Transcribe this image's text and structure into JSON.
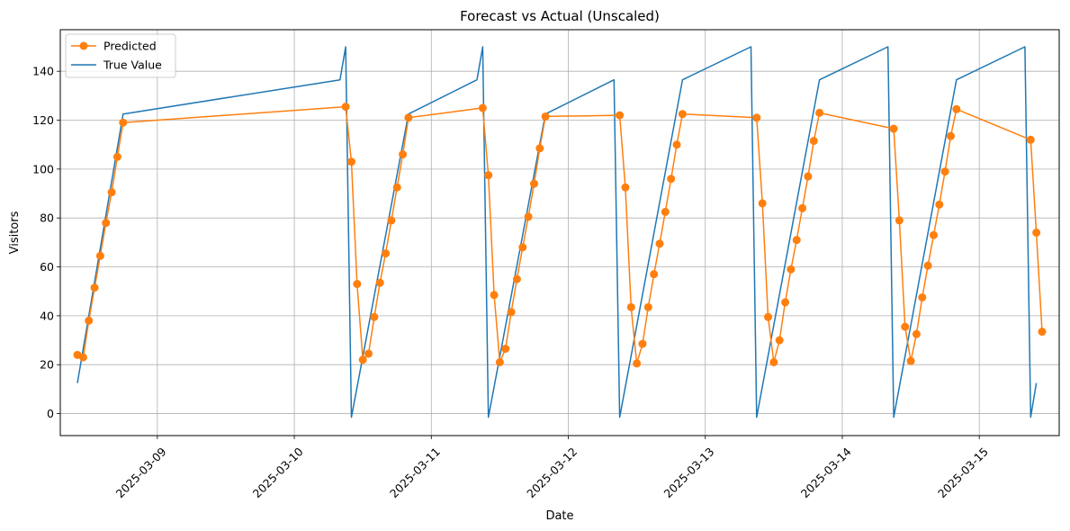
{
  "chart_data": {
    "type": "line",
    "title": "Forecast vs Actual (Unscaled)",
    "xlabel": "Date",
    "ylabel": "Visitors",
    "x_range": [
      "2025-03-08 07:00",
      "2025-03-15 14:00"
    ],
    "ylim": [
      -9,
      157
    ],
    "yticks": [
      0,
      20,
      40,
      60,
      80,
      100,
      120,
      140
    ],
    "xticks": [
      "2025-03-09",
      "2025-03-10",
      "2025-03-11",
      "2025-03-12",
      "2025-03-13",
      "2025-03-14",
      "2025-03-15"
    ],
    "grid": true,
    "legend_position": "upper left",
    "series": [
      {
        "name": "Predicted",
        "color": "#ff7f0e",
        "marker": "circle",
        "points": [
          [
            "2025-03-08 10:00",
            24
          ],
          [
            "2025-03-08 11:00",
            23
          ],
          [
            "2025-03-08 12:00",
            38
          ],
          [
            "2025-03-08 13:00",
            51.5
          ],
          [
            "2025-03-08 14:00",
            64.5
          ],
          [
            "2025-03-08 15:00",
            78
          ],
          [
            "2025-03-08 16:00",
            90.5
          ],
          [
            "2025-03-08 17:00",
            105
          ],
          [
            "2025-03-08 18:00",
            119
          ],
          [
            "2025-03-10 09:00",
            125.5
          ],
          [
            "2025-03-10 10:00",
            103
          ],
          [
            "2025-03-10 11:00",
            53
          ],
          [
            "2025-03-10 12:00",
            22
          ],
          [
            "2025-03-10 13:00",
            24.5
          ],
          [
            "2025-03-10 14:00",
            39.5
          ],
          [
            "2025-03-10 15:00",
            53.5
          ],
          [
            "2025-03-10 16:00",
            65.5
          ],
          [
            "2025-03-10 17:00",
            79
          ],
          [
            "2025-03-10 18:00",
            92.5
          ],
          [
            "2025-03-10 19:00",
            106
          ],
          [
            "2025-03-10 20:00",
            121
          ],
          [
            "2025-03-11 09:00",
            125
          ],
          [
            "2025-03-11 10:00",
            97.5
          ],
          [
            "2025-03-11 11:00",
            48.5
          ],
          [
            "2025-03-11 12:00",
            21
          ],
          [
            "2025-03-11 13:00",
            26.5
          ],
          [
            "2025-03-11 14:00",
            41.5
          ],
          [
            "2025-03-11 15:00",
            55
          ],
          [
            "2025-03-11 16:00",
            68
          ],
          [
            "2025-03-11 17:00",
            80.5
          ],
          [
            "2025-03-11 18:00",
            94
          ],
          [
            "2025-03-11 19:00",
            108.5
          ],
          [
            "2025-03-11 20:00",
            121.5
          ],
          [
            "2025-03-12 09:00",
            122
          ],
          [
            "2025-03-12 10:00",
            92.5
          ],
          [
            "2025-03-12 11:00",
            43.5
          ],
          [
            "2025-03-12 12:00",
            20.5
          ],
          [
            "2025-03-12 13:00",
            28.5
          ],
          [
            "2025-03-12 14:00",
            43.5
          ],
          [
            "2025-03-12 15:00",
            57
          ],
          [
            "2025-03-12 16:00",
            69.5
          ],
          [
            "2025-03-12 17:00",
            82.5
          ],
          [
            "2025-03-12 18:00",
            96
          ],
          [
            "2025-03-12 19:00",
            110
          ],
          [
            "2025-03-12 20:00",
            122.5
          ],
          [
            "2025-03-13 09:00",
            121
          ],
          [
            "2025-03-13 10:00",
            86
          ],
          [
            "2025-03-13 11:00",
            39.5
          ],
          [
            "2025-03-13 12:00",
            21
          ],
          [
            "2025-03-13 13:00",
            30
          ],
          [
            "2025-03-13 14:00",
            45.5
          ],
          [
            "2025-03-13 15:00",
            59
          ],
          [
            "2025-03-13 16:00",
            71
          ],
          [
            "2025-03-13 17:00",
            84
          ],
          [
            "2025-03-13 18:00",
            97
          ],
          [
            "2025-03-13 19:00",
            111.5
          ],
          [
            "2025-03-13 20:00",
            123
          ],
          [
            "2025-03-14 09:00",
            116.5
          ],
          [
            "2025-03-14 10:00",
            79
          ],
          [
            "2025-03-14 11:00",
            35.5
          ],
          [
            "2025-03-14 12:00",
            21.5
          ],
          [
            "2025-03-14 13:00",
            32.5
          ],
          [
            "2025-03-14 14:00",
            47.5
          ],
          [
            "2025-03-14 15:00",
            60.5
          ],
          [
            "2025-03-14 16:00",
            73
          ],
          [
            "2025-03-14 17:00",
            85.5
          ],
          [
            "2025-03-14 18:00",
            99
          ],
          [
            "2025-03-14 19:00",
            113.5
          ],
          [
            "2025-03-14 20:00",
            124.5
          ],
          [
            "2025-03-15 09:00",
            112
          ],
          [
            "2025-03-15 10:00",
            74
          ],
          [
            "2025-03-15 11:00",
            33.5
          ]
        ]
      },
      {
        "name": "True Value",
        "color": "#1f77b4",
        "marker": "none",
        "points": [
          [
            "2025-03-08 10:00",
            12.5
          ],
          [
            "2025-03-08 18:00",
            122.5
          ],
          [
            "2025-03-10 08:00",
            136.5
          ],
          [
            "2025-03-10 09:00",
            150
          ],
          [
            "2025-03-10 10:00",
            -1.5
          ],
          [
            "2025-03-10 20:00",
            122.5
          ],
          [
            "2025-03-11 08:00",
            136.5
          ],
          [
            "2025-03-11 09:00",
            150
          ],
          [
            "2025-03-11 10:00",
            -1.5
          ],
          [
            "2025-03-11 20:00",
            122.5
          ],
          [
            "2025-03-12 08:00",
            136.5
          ],
          [
            "2025-03-12 09:00",
            -1.5
          ],
          [
            "2025-03-12 20:00",
            136.5
          ],
          [
            "2025-03-13 08:00",
            150
          ],
          [
            "2025-03-13 09:00",
            -1.5
          ],
          [
            "2025-03-13 20:00",
            136.5
          ],
          [
            "2025-03-14 08:00",
            150
          ],
          [
            "2025-03-14 09:00",
            -1.5
          ],
          [
            "2025-03-14 20:00",
            136.5
          ],
          [
            "2025-03-15 08:00",
            150
          ],
          [
            "2025-03-15 09:00",
            -1.5
          ],
          [
            "2025-03-15 10:00",
            12.5
          ]
        ]
      }
    ]
  }
}
